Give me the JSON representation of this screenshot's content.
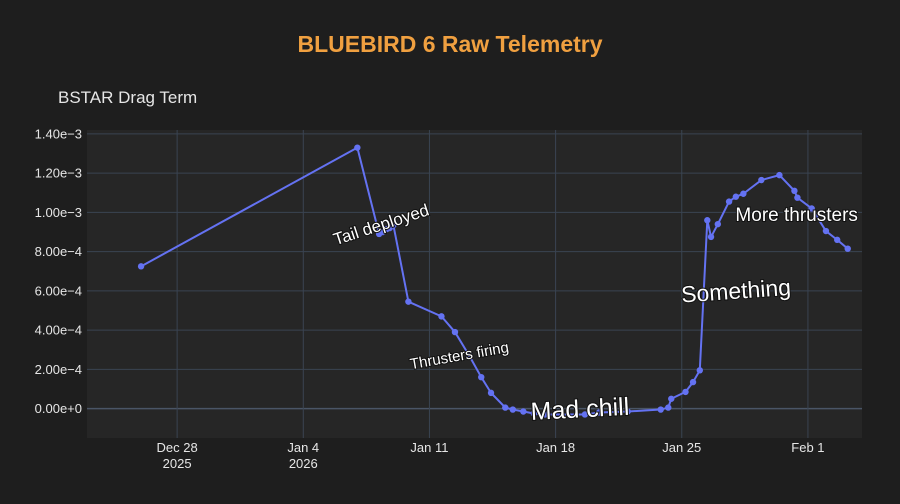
{
  "chart_data": {
    "type": "line",
    "title": "BLUEBIRD 6 Raw Telemetry",
    "ylabel": "BSTAR Drag Term",
    "xlabel": "",
    "ylim": [
      -0.00015,
      0.00142
    ],
    "xlim": [
      "2025-12-23",
      "2026-02-04"
    ],
    "grid": true,
    "colors": {
      "line": "#6472f2",
      "plot_bg": "#262626",
      "page_bg": "#1e1e1e",
      "title": "#f0a040"
    },
    "y_ticks": [
      {
        "value": 0.0,
        "label": "0.00e+0"
      },
      {
        "value": 0.0002,
        "label": "2.00e−4"
      },
      {
        "value": 0.0004,
        "label": "4.00e−4"
      },
      {
        "value": 0.0006,
        "label": "6.00e−4"
      },
      {
        "value": 0.0008,
        "label": "8.00e−4"
      },
      {
        "value": 0.001,
        "label": "1.00e−3"
      },
      {
        "value": 0.0012,
        "label": "1.20e−3"
      },
      {
        "value": 0.0014,
        "label": "1.40e−3"
      }
    ],
    "x_ticks": [
      {
        "value": "2025-12-28",
        "label": "Dec 28",
        "sublabel": "2025"
      },
      {
        "value": "2026-01-04",
        "label": "Jan 4",
        "sublabel": "2026"
      },
      {
        "value": "2026-01-11",
        "label": "Jan 11",
        "sublabel": ""
      },
      {
        "value": "2026-01-18",
        "label": "Jan 18",
        "sublabel": ""
      },
      {
        "value": "2026-01-25",
        "label": "Jan 25",
        "sublabel": ""
      },
      {
        "value": "2026-02-01",
        "label": "Feb 1",
        "sublabel": ""
      }
    ],
    "series": [
      {
        "points": [
          [
            "2025-12-26",
            0.000725
          ],
          [
            "2026-01-07",
            0.00133
          ],
          [
            "2026-01-08 05:00",
            0.00089
          ],
          [
            "2026-01-08 10:00",
            0.0009
          ],
          [
            "2026-01-08 15:00",
            0.000915
          ],
          [
            "2026-01-08 19:00",
            0.00092
          ],
          [
            "2026-01-09",
            0.000935
          ],
          [
            "2026-01-09 20:00",
            0.000545
          ],
          [
            "2026-01-11 16:00",
            0.00047
          ],
          [
            "2026-01-12 10:00",
            0.00039
          ],
          [
            "2026-01-13 05:00",
            0.00027
          ],
          [
            "2026-01-13 21:00",
            0.00016
          ],
          [
            "2026-01-14 10:00",
            8e-05
          ],
          [
            "2026-01-15 05:00",
            5e-06
          ],
          [
            "2026-01-15 15:00",
            -5e-06
          ],
          [
            "2026-01-16 05:00",
            -1.5e-05
          ],
          [
            "2026-01-16 19:00",
            -2.5e-05
          ],
          [
            "2026-01-17 10:00",
            -3e-05
          ],
          [
            "2026-01-19 15:00",
            -3e-05
          ],
          [
            "2026-01-20 10:00",
            -2e-05
          ],
          [
            "2026-01-22",
            -1.5e-05
          ],
          [
            "2026-01-23 20:00",
            -5e-06
          ],
          [
            "2026-01-24 06:00",
            5e-06
          ],
          [
            "2026-01-24 10:00",
            5e-05
          ],
          [
            "2026-01-25 05:00",
            8.5e-05
          ],
          [
            "2026-01-25 15:00",
            0.000135
          ],
          [
            "2026-01-26",
            0.000195
          ],
          [
            "2026-01-26 10:00",
            0.00096
          ],
          [
            "2026-01-26 15:00",
            0.000875
          ],
          [
            "2026-01-27",
            0.00094
          ],
          [
            "2026-01-27 15:00",
            0.001055
          ],
          [
            "2026-01-28",
            0.00108
          ],
          [
            "2026-01-28 10:00",
            0.001095
          ],
          [
            "2026-01-29 10:00",
            0.001165
          ],
          [
            "2026-01-30 10:00",
            0.00119
          ],
          [
            "2026-01-31 06:00",
            0.00111
          ],
          [
            "2026-01-31 10:00",
            0.001075
          ],
          [
            "2026-02-01 05:00",
            0.00102
          ],
          [
            "2026-02-02",
            0.000905
          ],
          [
            "2026-02-02 15:00",
            0.00086
          ],
          [
            "2026-02-03 05:00",
            0.000815
          ]
        ]
      }
    ],
    "annotations": [
      {
        "text": "Tail deployed",
        "x": "2026-01-08 10:00",
        "y": 0.00091,
        "rotate": -18,
        "size": 17
      },
      {
        "text": "Thrusters firing",
        "x": "2026-01-12 17:00",
        "y": 0.000245,
        "rotate": -10,
        "size": 15
      },
      {
        "text": "Mad chill",
        "x": "2026-01-19 09:00",
        "y": -4.5e-05,
        "rotate": -3,
        "size": 25
      },
      {
        "text": "Something",
        "x": "2026-01-28 01:00",
        "y": 0.00056,
        "rotate": -4,
        "size": 23
      },
      {
        "text": "More thrusters",
        "x": "2026-01-31 09:00",
        "y": 0.000955,
        "rotate": 0,
        "size": 19
      }
    ]
  }
}
